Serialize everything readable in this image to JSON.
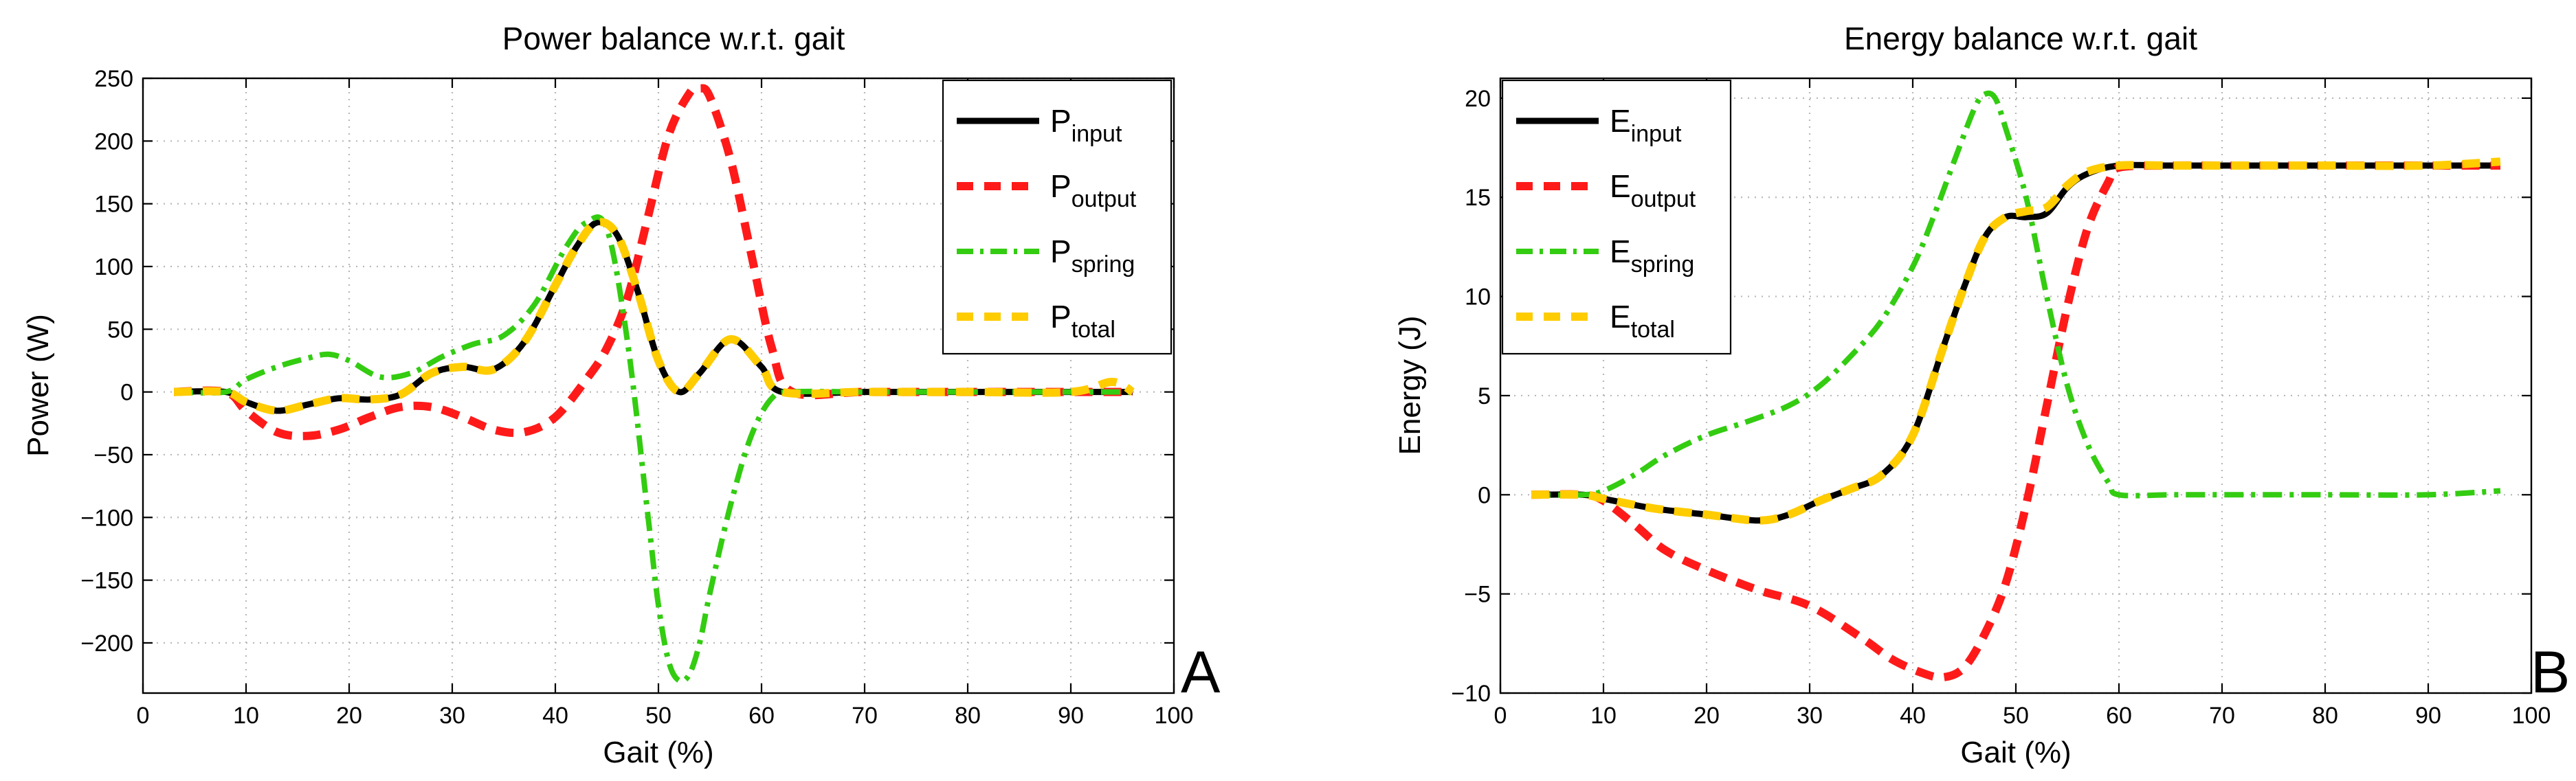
{
  "chart_data": [
    {
      "type": "line",
      "title": "Power balance w.r.t. gait",
      "xlabel": "Gait (%)",
      "ylabel": "Power (W)",
      "xlim": [
        0,
        100
      ],
      "ylim": [
        -240,
        250
      ],
      "xticks": [
        0,
        10,
        20,
        30,
        40,
        50,
        60,
        70,
        80,
        90,
        100
      ],
      "yticks": [
        -200,
        -150,
        -100,
        -50,
        0,
        50,
        100,
        150,
        200,
        250
      ],
      "ytick_labels": [
        "−200",
        "−150",
        "−100",
        "−50",
        "0",
        "50",
        "100",
        "150",
        "200",
        "250"
      ],
      "grid": true,
      "legend_position": "top-right",
      "panel_label": "A",
      "series": [
        {
          "name": "P_input",
          "legend_main": "P",
          "legend_sub": "input",
          "color": "#000000",
          "style": "solid",
          "x": [
            3,
            8,
            10,
            13,
            16,
            19,
            22,
            25,
            28,
            31,
            34,
            37,
            40,
            42,
            44,
            46,
            48,
            50,
            52,
            54,
            57,
            60,
            62,
            70,
            80,
            90,
            96
          ],
          "y": [
            0,
            0,
            -8,
            -15,
            -10,
            -5,
            -6,
            -2,
            15,
            20,
            18,
            40,
            85,
            115,
            135,
            125,
            80,
            25,
            0,
            15,
            42,
            20,
            0,
            0,
            0,
            0,
            0
          ]
        },
        {
          "name": "P_output",
          "legend_main": "P",
          "legend_sub": "output",
          "color": "#ff1a1a",
          "style": "dashed",
          "x": [
            3,
            8,
            10,
            13,
            16,
            19,
            22,
            25,
            28,
            31,
            34,
            37,
            40,
            43,
            45,
            47,
            49,
            51,
            53,
            54,
            55,
            57,
            59,
            61,
            63,
            70,
            80,
            90,
            96
          ],
          "y": [
            0,
            0,
            -15,
            -32,
            -35,
            -30,
            -20,
            -12,
            -12,
            -20,
            -30,
            -32,
            -20,
            10,
            35,
            75,
            140,
            205,
            238,
            242,
            235,
            185,
            110,
            35,
            0,
            0,
            0,
            0,
            0
          ]
        },
        {
          "name": "P_spring",
          "legend_main": "P",
          "legend_sub": "spring",
          "color": "#33cc11",
          "style": "dashdot",
          "x": [
            3,
            8,
            10,
            13,
            16,
            18,
            20,
            23,
            26,
            29,
            32,
            35,
            38,
            41,
            43,
            45,
            47,
            49,
            50,
            51,
            52,
            53,
            54,
            55,
            57,
            59,
            61,
            63,
            70,
            80,
            90,
            96
          ],
          "y": [
            0,
            0,
            10,
            20,
            27,
            30,
            25,
            12,
            15,
            28,
            38,
            45,
            70,
            115,
            135,
            130,
            40,
            -100,
            -170,
            -215,
            -230,
            -225,
            -200,
            -160,
            -90,
            -35,
            -5,
            0,
            0,
            0,
            0,
            0
          ]
        },
        {
          "name": "P_total",
          "legend_main": "P",
          "legend_sub": "total",
          "color": "#ffcc00",
          "style": "dashed",
          "x": [
            3,
            8,
            10,
            13,
            16,
            19,
            22,
            25,
            28,
            31,
            34,
            37,
            40,
            42,
            44,
            46,
            48,
            50,
            52,
            54,
            57,
            60,
            62,
            70,
            80,
            90,
            94,
            96
          ],
          "y": [
            0,
            0,
            -8,
            -15,
            -10,
            -5,
            -6,
            -2,
            15,
            20,
            18,
            40,
            85,
            115,
            135,
            125,
            80,
            25,
            0,
            15,
            42,
            20,
            0,
            0,
            0,
            0,
            8,
            0
          ]
        }
      ]
    },
    {
      "type": "line",
      "title": "Energy balance w.r.t. gait",
      "xlabel": "Gait (%)",
      "ylabel": "Energy (J)",
      "xlim": [
        0,
        100
      ],
      "ylim": [
        -10,
        21
      ],
      "xticks": [
        0,
        10,
        20,
        30,
        40,
        50,
        60,
        70,
        80,
        90,
        100
      ],
      "yticks": [
        -10,
        -5,
        0,
        5,
        10,
        15,
        20
      ],
      "ytick_labels": [
        "−10",
        "−5",
        "0",
        "5",
        "10",
        "15",
        "20"
      ],
      "grid": true,
      "legend_position": "top-left",
      "panel_label": "B",
      "series": [
        {
          "name": "E_input",
          "legend_main": "E",
          "legend_sub": "input",
          "color": "#000000",
          "style": "solid",
          "x": [
            3,
            8,
            10,
            15,
            20,
            25,
            28,
            31,
            34,
            37,
            40,
            43,
            45,
            47,
            49,
            51,
            53,
            55,
            57,
            60,
            65,
            70,
            80,
            90,
            97
          ],
          "y": [
            0,
            0,
            -0.2,
            -0.7,
            -1.0,
            -1.3,
            -1.0,
            -0.3,
            0.3,
            1.0,
            3.0,
            7.5,
            10.5,
            13.0,
            14.0,
            14.0,
            14.2,
            15.5,
            16.2,
            16.6,
            16.6,
            16.6,
            16.6,
            16.6,
            16.6
          ]
        },
        {
          "name": "E_output",
          "legend_main": "E",
          "legend_sub": "output",
          "color": "#ff1a1a",
          "style": "dashed",
          "x": [
            3,
            8,
            10,
            13,
            16,
            20,
            25,
            30,
            35,
            38,
            41,
            43,
            45,
            47,
            49,
            51,
            53,
            55,
            57,
            59,
            60,
            65,
            70,
            80,
            90,
            97
          ],
          "y": [
            0,
            0,
            -0.3,
            -1.5,
            -2.8,
            -3.8,
            -4.8,
            -5.6,
            -7.2,
            -8.3,
            -9.0,
            -9.2,
            -8.7,
            -7.0,
            -4.5,
            -0.5,
            4.5,
            9.5,
            13.5,
            15.8,
            16.5,
            16.6,
            16.6,
            16.6,
            16.6,
            16.6
          ]
        },
        {
          "name": "E_spring",
          "legend_main": "E",
          "legend_sub": "spring",
          "color": "#33cc11",
          "style": "dashdot",
          "x": [
            3,
            8,
            10,
            13,
            16,
            20,
            24,
            28,
            31,
            34,
            37,
            40,
            42,
            44,
            46,
            47,
            48,
            49,
            51,
            53,
            55,
            57,
            59,
            60,
            65,
            70,
            80,
            90,
            97
          ],
          "y": [
            0,
            0,
            0.2,
            1.0,
            2.0,
            3.0,
            3.7,
            4.5,
            5.5,
            7.0,
            8.8,
            11.5,
            14.0,
            16.8,
            19.5,
            20.2,
            20.0,
            18.5,
            15.0,
            10.0,
            5.5,
            2.5,
            0.6,
            0,
            0,
            0,
            0,
            0,
            0.2
          ]
        },
        {
          "name": "E_total",
          "legend_main": "E",
          "legend_sub": "total",
          "color": "#ffcc00",
          "style": "dashed",
          "x": [
            3,
            8,
            10,
            15,
            20,
            25,
            28,
            31,
            34,
            37,
            40,
            43,
            45,
            47,
            49,
            51,
            53,
            55,
            57,
            60,
            65,
            70,
            80,
            90,
            97
          ],
          "y": [
            0,
            0,
            -0.2,
            -0.7,
            -1.0,
            -1.3,
            -1.0,
            -0.3,
            0.3,
            1.0,
            3.0,
            7.5,
            10.5,
            13.0,
            14.0,
            14.3,
            14.5,
            15.6,
            16.3,
            16.6,
            16.6,
            16.6,
            16.6,
            16.6,
            16.8
          ]
        }
      ]
    }
  ]
}
